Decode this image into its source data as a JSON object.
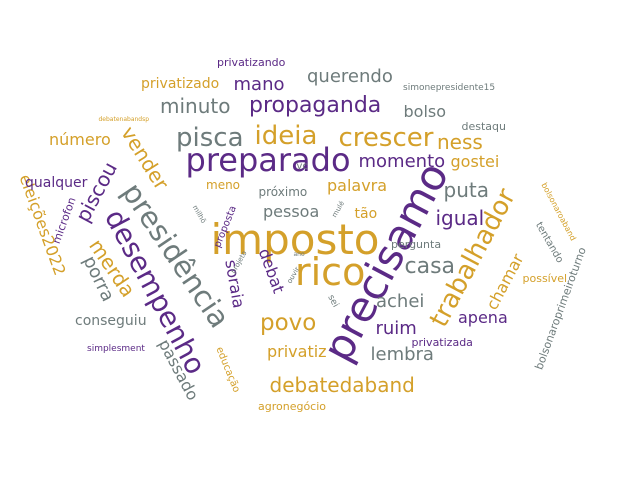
{
  "colors": {
    "purple": "#5b2a86",
    "gold": "#d4a02a",
    "gray": "#6e7b7b",
    "background": "#ffffff"
  },
  "words": [
    {
      "text": "imposto",
      "color": "gold"
    },
    {
      "text": "precisamo",
      "color": "purple"
    },
    {
      "text": "preparado",
      "color": "purple"
    },
    {
      "text": "rico",
      "color": "gold"
    },
    {
      "text": "presidência",
      "color": "gray"
    },
    {
      "text": "desempenho",
      "color": "purple"
    },
    {
      "text": "crescer",
      "color": "gold"
    },
    {
      "text": "ideia",
      "color": "gold"
    },
    {
      "text": "pisca",
      "color": "gray"
    },
    {
      "text": "trabalhador",
      "color": "gold"
    },
    {
      "text": "propaganda",
      "color": "purple"
    },
    {
      "text": "casa",
      "color": "gray"
    },
    {
      "text": "povo",
      "color": "gold"
    },
    {
      "text": "minuto",
      "color": "gray"
    },
    {
      "text": "debatedaband",
      "color": "gold"
    },
    {
      "text": "igual",
      "color": "purple"
    },
    {
      "text": "puta",
      "color": "gray"
    },
    {
      "text": "ness",
      "color": "gold"
    },
    {
      "text": "momento",
      "color": "purple"
    },
    {
      "text": "vender",
      "color": "gold"
    },
    {
      "text": "piscou",
      "color": "purple"
    },
    {
      "text": "merda",
      "color": "gold"
    },
    {
      "text": "porra",
      "color": "gray"
    },
    {
      "text": "soraia",
      "color": "purple"
    },
    {
      "text": "ruim",
      "color": "purple"
    },
    {
      "text": "achei",
      "color": "gray"
    },
    {
      "text": "lembra",
      "color": "gray"
    },
    {
      "text": "chamar",
      "color": "gold"
    },
    {
      "text": "querendo",
      "color": "gray"
    },
    {
      "text": "mano",
      "color": "purple"
    },
    {
      "text": "bolso",
      "color": "gray"
    },
    {
      "text": "gostei",
      "color": "gold"
    },
    {
      "text": "pessoa",
      "color": "gray"
    },
    {
      "text": "palavra",
      "color": "gold"
    },
    {
      "text": "apena",
      "color": "purple"
    },
    {
      "text": "privatiz",
      "color": "gold"
    },
    {
      "text": "passado",
      "color": "gray"
    },
    {
      "text": "número",
      "color": "gold"
    },
    {
      "text": "eleições2022",
      "color": "gold"
    },
    {
      "text": "conseguiu",
      "color": "gray"
    },
    {
      "text": "privatizado",
      "color": "gold"
    },
    {
      "text": "debat",
      "color": "purple"
    },
    {
      "text": "qualquer",
      "color": "purple"
    },
    {
      "text": "tão",
      "color": "gold"
    },
    {
      "text": "privatizando",
      "color": "purple"
    },
    {
      "text": "meno",
      "color": "gold"
    },
    {
      "text": "próximo",
      "color": "gray"
    },
    {
      "text": "destaqu",
      "color": "gray"
    },
    {
      "text": "pergunta",
      "color": "gray"
    },
    {
      "text": "possível",
      "color": "gold"
    },
    {
      "text": "tentando",
      "color": "gray"
    },
    {
      "text": "microfon",
      "color": "purple"
    },
    {
      "text": "bolsonaroprimeiroturno",
      "color": "gray"
    },
    {
      "text": "vc",
      "color": "gray"
    },
    {
      "text": "proposta",
      "color": "purple"
    },
    {
      "text": "privatizada",
      "color": "purple"
    },
    {
      "text": "educação",
      "color": "gold"
    },
    {
      "text": "agronegócio",
      "color": "gold"
    },
    {
      "text": "simplesment",
      "color": "purple"
    },
    {
      "text": "simonepresidente15",
      "color": "gray"
    },
    {
      "text": "bolsonaroaband",
      "color": "gold"
    },
    {
      "text": "debatenabandsp",
      "color": "gold"
    },
    {
      "text": "sei",
      "color": "gray"
    },
    {
      "text": "milhõ",
      "color": "gray"
    },
    {
      "text": "projeto",
      "color": "gray"
    },
    {
      "text": "ouvir",
      "color": "gray"
    },
    {
      "text": "mulé",
      "color": "gray"
    },
    {
      "text": "ano",
      "color": "gray"
    }
  ]
}
